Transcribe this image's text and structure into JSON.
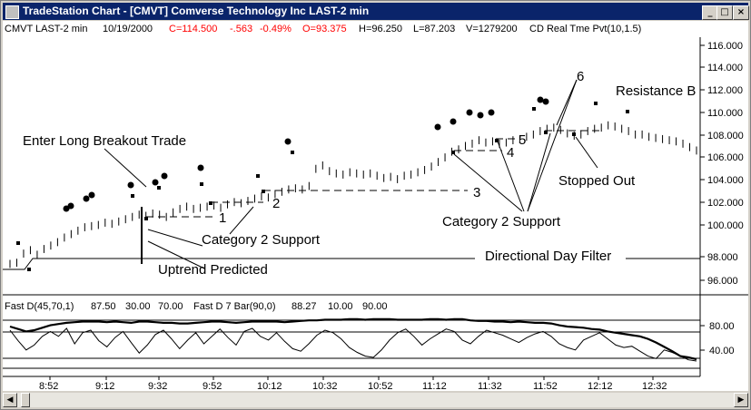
{
  "window": {
    "title": "TradeStation Chart - [CMVT] Comverse Technology Inc LAST-2 min",
    "buttons": {
      "minimize": "_",
      "maximize": "□",
      "close": "×"
    }
  },
  "header": {
    "symbol": "CMVT LAST-2 min",
    "date": "10/19/2000",
    "close": "C=114.500",
    "change": "-.563",
    "pct": "-0.49%",
    "open": "O=93.375",
    "high": "H=96.250",
    "low": "L=87.203",
    "volume": "V=1279200",
    "indicator": "CD Real Tme Pvt(10,1.5)"
  },
  "colors": {
    "negative": "#ff0000",
    "title_bg": "#0a246a",
    "chart_bg": "#ffffff",
    "dashed": "#555555"
  },
  "price_axis": [
    "116.000",
    "114.000",
    "112.000",
    "110.000",
    "108.000",
    "106.000",
    "104.000",
    "102.000",
    "100.000",
    "98.000",
    "96.000"
  ],
  "osc_header": {
    "name": "Fast D(45,70,1)",
    "v1": "87.50",
    "v2": "30.00",
    "v3": "70.00",
    "name2": "Fast D 7 Bar(90,0)",
    "v4": "88.27",
    "v5": "10.00",
    "v6": "90.00"
  },
  "osc_axis": [
    "80.00",
    "40.00"
  ],
  "time_axis": [
    "8:52",
    "9:12",
    "9:32",
    "9:52",
    "10:12",
    "10:32",
    "10:52",
    "11:12",
    "11:32",
    "11:52",
    "12:12",
    "12:32"
  ],
  "annotations": {
    "enter_long": "Enter Long Breakout Trade",
    "cat2_left": "Category 2 Support",
    "uptrend": "Uptrend Predicted",
    "directional": "Directional Day Filter",
    "cat2_right": "Category 2 Support",
    "stopped": "Stopped Out",
    "resistance": "Resistance B",
    "n1": "1",
    "n2": "2",
    "n3": "3",
    "n4": "4",
    "n5": "5",
    "n6": "6"
  },
  "chart_data": {
    "type": "line",
    "title": "CMVT LAST-2 min",
    "ylim": [
      95,
      117.5
    ],
    "series": [
      {
        "name": "CMVT LAST-2 min",
        "values": [
          97.7,
          97.8,
          98.6,
          98.9,
          98.5,
          99.0,
          99.3,
          99.6,
          100.0,
          100.3,
          100.6,
          100.9,
          101.0,
          101.1,
          101.3,
          101.2,
          101.4,
          101.6,
          101.8,
          102.0,
          101.9,
          102.1,
          102.0,
          101.8,
          102.2,
          102.5,
          102.7,
          102.5,
          102.6,
          102.7,
          102.8,
          102.6,
          102.9,
          103.1,
          103.0,
          103.2,
          103.4,
          103.6,
          103.5,
          103.8,
          104.0,
          104.2,
          104.3,
          104.2,
          104.5,
          106.0,
          106.3,
          105.8,
          105.6,
          105.5,
          105.7,
          105.6,
          105.5,
          105.6,
          105.4,
          105.2,
          105.3,
          105.1,
          105.4,
          105.5,
          105.7,
          105.9,
          106.2,
          106.6,
          107.0,
          107.5,
          107.7,
          108.0,
          108.2,
          108.5,
          108.3,
          108.4,
          108.2,
          108.3,
          108.5,
          108.6,
          108.8,
          109.0,
          109.3,
          109.5,
          109.6,
          109.4,
          109.1,
          108.9,
          109.0,
          109.3,
          109.5,
          109.6,
          109.8,
          109.7,
          109.5,
          109.3,
          109.0,
          109.0,
          108.8,
          108.7,
          108.6,
          108.5,
          108.4,
          108.2,
          107.9,
          107.6
        ]
      }
    ]
  },
  "osc_data": {
    "fast_d": [
      78,
      74,
      70,
      72,
      76,
      80,
      82,
      84,
      85,
      86,
      86,
      86,
      85,
      86,
      85,
      84,
      86,
      86,
      85,
      84,
      84,
      83,
      83,
      84,
      85,
      86,
      86,
      85,
      84,
      85,
      86,
      86,
      86,
      86,
      85,
      86,
      87,
      88,
      88,
      89,
      89,
      89,
      90,
      90,
      89,
      90,
      90,
      90,
      89,
      89,
      89,
      89,
      90,
      90,
      89,
      90,
      90,
      88,
      87,
      87,
      86,
      86,
      85,
      86,
      85,
      84,
      84,
      83,
      80,
      78,
      77,
      76,
      74,
      73,
      70,
      68,
      66,
      64,
      62,
      58,
      52,
      45,
      38,
      30,
      28,
      25
    ],
    "fast_d7": [
      72,
      55,
      40,
      48,
      62,
      70,
      62,
      75,
      50,
      68,
      72,
      55,
      45,
      60,
      70,
      52,
      35,
      48,
      65,
      72,
      58,
      42,
      56,
      68,
      50,
      62,
      74,
      60,
      48,
      70,
      75,
      62,
      56,
      68,
      54,
      42,
      38,
      50,
      64,
      72,
      68,
      58,
      44,
      36,
      30,
      28,
      40,
      56,
      68,
      74,
      62,
      48,
      58,
      66,
      74,
      70,
      56,
      50,
      62,
      72,
      68,
      64,
      58,
      52,
      60,
      66,
      70,
      62,
      50,
      44,
      40,
      56,
      62,
      68,
      58,
      48,
      44,
      46,
      38,
      30,
      26,
      40,
      36,
      30,
      24,
      22
    ]
  }
}
